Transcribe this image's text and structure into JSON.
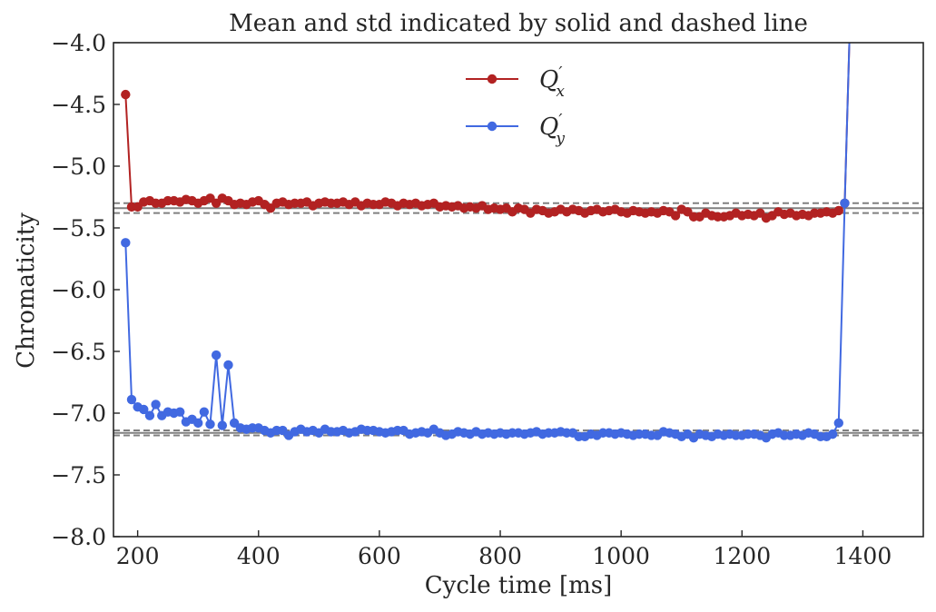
{
  "chart_data": {
    "type": "line",
    "title": "Mean and std indicated by solid and dashed line",
    "xlabel": "Cycle time [ms]",
    "ylabel": "Chromaticity",
    "xlim": [
      160,
      1500
    ],
    "ylim": [
      -8.0,
      -4.0
    ],
    "xticks": [
      200,
      400,
      600,
      800,
      1000,
      1200,
      1400
    ],
    "xtick_labels": [
      "200",
      "400",
      "600",
      "800",
      "1000",
      "1200",
      "1400"
    ],
    "yticks": [
      -4.0,
      -4.5,
      -5.0,
      -5.5,
      -6.0,
      -6.5,
      -7.0,
      -7.5,
      -8.0
    ],
    "ytick_labels": [
      "−4.0",
      "−4.5",
      "−5.0",
      "−5.5",
      "−6.0",
      "−6.5",
      "−7.0",
      "−7.5",
      "−8.0"
    ],
    "grid": false,
    "legend_position": "top-center",
    "x": [
      180,
      190,
      200,
      210,
      220,
      230,
      240,
      250,
      260,
      270,
      280,
      290,
      300,
      310,
      320,
      330,
      340,
      350,
      360,
      370,
      380,
      390,
      400,
      410,
      420,
      430,
      440,
      450,
      460,
      470,
      480,
      490,
      500,
      510,
      520,
      530,
      540,
      550,
      560,
      570,
      580,
      590,
      600,
      610,
      620,
      630,
      640,
      650,
      660,
      670,
      680,
      690,
      700,
      710,
      720,
      730,
      740,
      750,
      760,
      770,
      780,
      790,
      800,
      810,
      820,
      830,
      840,
      850,
      860,
      870,
      880,
      890,
      900,
      910,
      920,
      930,
      940,
      950,
      960,
      970,
      980,
      990,
      1000,
      1010,
      1020,
      1030,
      1040,
      1050,
      1060,
      1070,
      1080,
      1090,
      1100,
      1110,
      1120,
      1130,
      1140,
      1150,
      1160,
      1170,
      1180,
      1190,
      1200,
      1210,
      1220,
      1230,
      1240,
      1250,
      1260,
      1270,
      1280,
      1290,
      1300,
      1310,
      1320,
      1330,
      1340,
      1350,
      1360,
      1370,
      1380
    ],
    "series": [
      {
        "name": "Q′ₓ",
        "legend_base": "Q",
        "legend_sub": "x",
        "color": "#b22222",
        "values": [
          -4.42,
          -5.33,
          -5.33,
          -5.29,
          -5.28,
          -5.3,
          -5.3,
          -5.28,
          -5.28,
          -5.29,
          -5.27,
          -5.28,
          -5.3,
          -5.28,
          -5.26,
          -5.3,
          -5.26,
          -5.28,
          -5.31,
          -5.3,
          -5.31,
          -5.29,
          -5.28,
          -5.31,
          -5.34,
          -5.3,
          -5.29,
          -5.31,
          -5.3,
          -5.3,
          -5.29,
          -5.32,
          -5.3,
          -5.29,
          -5.3,
          -5.3,
          -5.29,
          -5.31,
          -5.29,
          -5.32,
          -5.3,
          -5.31,
          -5.31,
          -5.29,
          -5.3,
          -5.32,
          -5.3,
          -5.31,
          -5.3,
          -5.32,
          -5.31,
          -5.3,
          -5.33,
          -5.32,
          -5.33,
          -5.32,
          -5.34,
          -5.33,
          -5.34,
          -5.32,
          -5.35,
          -5.34,
          -5.35,
          -5.34,
          -5.37,
          -5.34,
          -5.35,
          -5.38,
          -5.35,
          -5.36,
          -5.38,
          -5.37,
          -5.35,
          -5.37,
          -5.35,
          -5.36,
          -5.38,
          -5.36,
          -5.35,
          -5.37,
          -5.36,
          -5.35,
          -5.37,
          -5.38,
          -5.36,
          -5.37,
          -5.38,
          -5.37,
          -5.38,
          -5.36,
          -5.37,
          -5.4,
          -5.35,
          -5.37,
          -5.41,
          -5.41,
          -5.38,
          -5.4,
          -5.41,
          -5.41,
          -5.4,
          -5.38,
          -5.4,
          -5.39,
          -5.4,
          -5.38,
          -5.42,
          -5.4,
          -5.37,
          -5.39,
          -5.38,
          -5.4,
          -5.39,
          -5.4,
          -5.38,
          -5.38,
          -5.37,
          -5.38,
          -5.36,
          -5.3,
          -3.6
        ]
      },
      {
        "name": "Q′ᵧ",
        "legend_base": "Q",
        "legend_sub": "y",
        "color": "#4169e1",
        "values": [
          -5.62,
          -6.89,
          -6.95,
          -6.97,
          -7.02,
          -6.93,
          -7.02,
          -6.99,
          -7.0,
          -6.99,
          -7.07,
          -7.05,
          -7.08,
          -6.99,
          -7.09,
          -6.53,
          -7.1,
          -6.61,
          -7.08,
          -7.12,
          -7.13,
          -7.12,
          -7.12,
          -7.14,
          -7.16,
          -7.14,
          -7.14,
          -7.18,
          -7.15,
          -7.13,
          -7.15,
          -7.14,
          -7.16,
          -7.13,
          -7.15,
          -7.15,
          -7.14,
          -7.16,
          -7.15,
          -7.13,
          -7.14,
          -7.14,
          -7.15,
          -7.16,
          -7.15,
          -7.14,
          -7.14,
          -7.17,
          -7.16,
          -7.15,
          -7.16,
          -7.13,
          -7.16,
          -7.18,
          -7.17,
          -7.15,
          -7.16,
          -7.17,
          -7.15,
          -7.17,
          -7.16,
          -7.17,
          -7.16,
          -7.17,
          -7.16,
          -7.16,
          -7.17,
          -7.16,
          -7.15,
          -7.17,
          -7.16,
          -7.16,
          -7.15,
          -7.16,
          -7.16,
          -7.19,
          -7.19,
          -7.17,
          -7.18,
          -7.16,
          -7.16,
          -7.17,
          -7.16,
          -7.17,
          -7.18,
          -7.17,
          -7.17,
          -7.18,
          -7.18,
          -7.15,
          -7.16,
          -7.17,
          -7.19,
          -7.17,
          -7.2,
          -7.17,
          -7.18,
          -7.19,
          -7.17,
          -7.18,
          -7.17,
          -7.18,
          -7.18,
          -7.17,
          -7.17,
          -7.18,
          -7.2,
          -7.17,
          -7.16,
          -7.18,
          -7.18,
          -7.17,
          -7.18,
          -7.16,
          -7.17,
          -7.19,
          -7.19,
          -7.17,
          -7.08,
          -5.3,
          -3.6
        ]
      }
    ],
    "reference_lines": [
      {
        "series": "Q′ₓ",
        "mean": -5.34,
        "std": 0.04,
        "color": "#808080"
      },
      {
        "series": "Q′ᵧ",
        "mean": -7.16,
        "std": 0.02,
        "color": "#808080"
      }
    ]
  }
}
